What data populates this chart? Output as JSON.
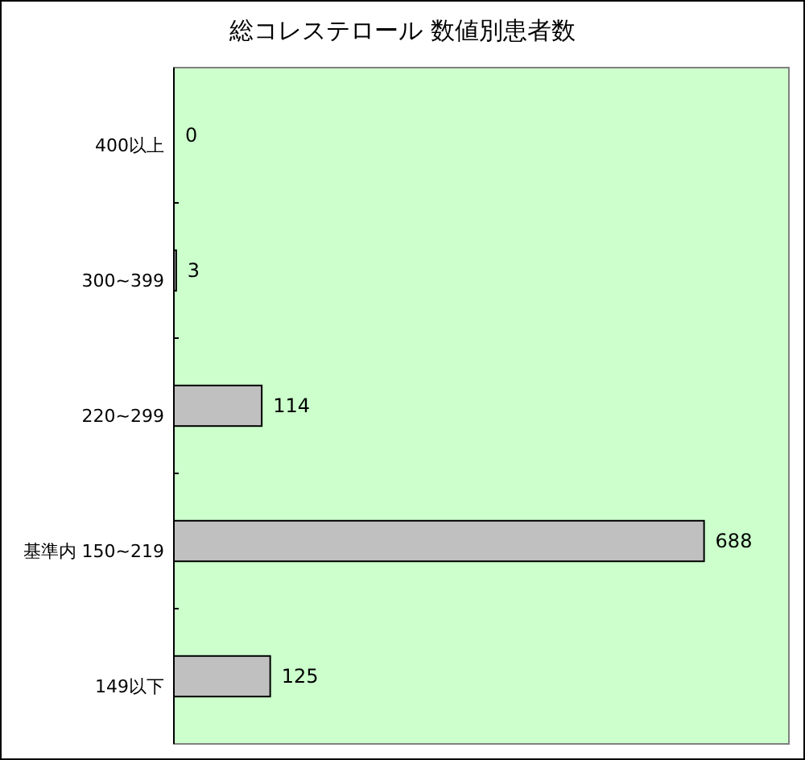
{
  "chart_data": {
    "type": "bar",
    "orientation": "horizontal",
    "title": "総コレステロール 数値別患者数",
    "categories": [
      "400以上",
      "300~399",
      "220~299",
      "基準内 150~219",
      "149以下"
    ],
    "values": [
      0,
      3,
      114,
      688,
      125
    ],
    "color": "#c0c0c0",
    "data_labels": true
  }
}
